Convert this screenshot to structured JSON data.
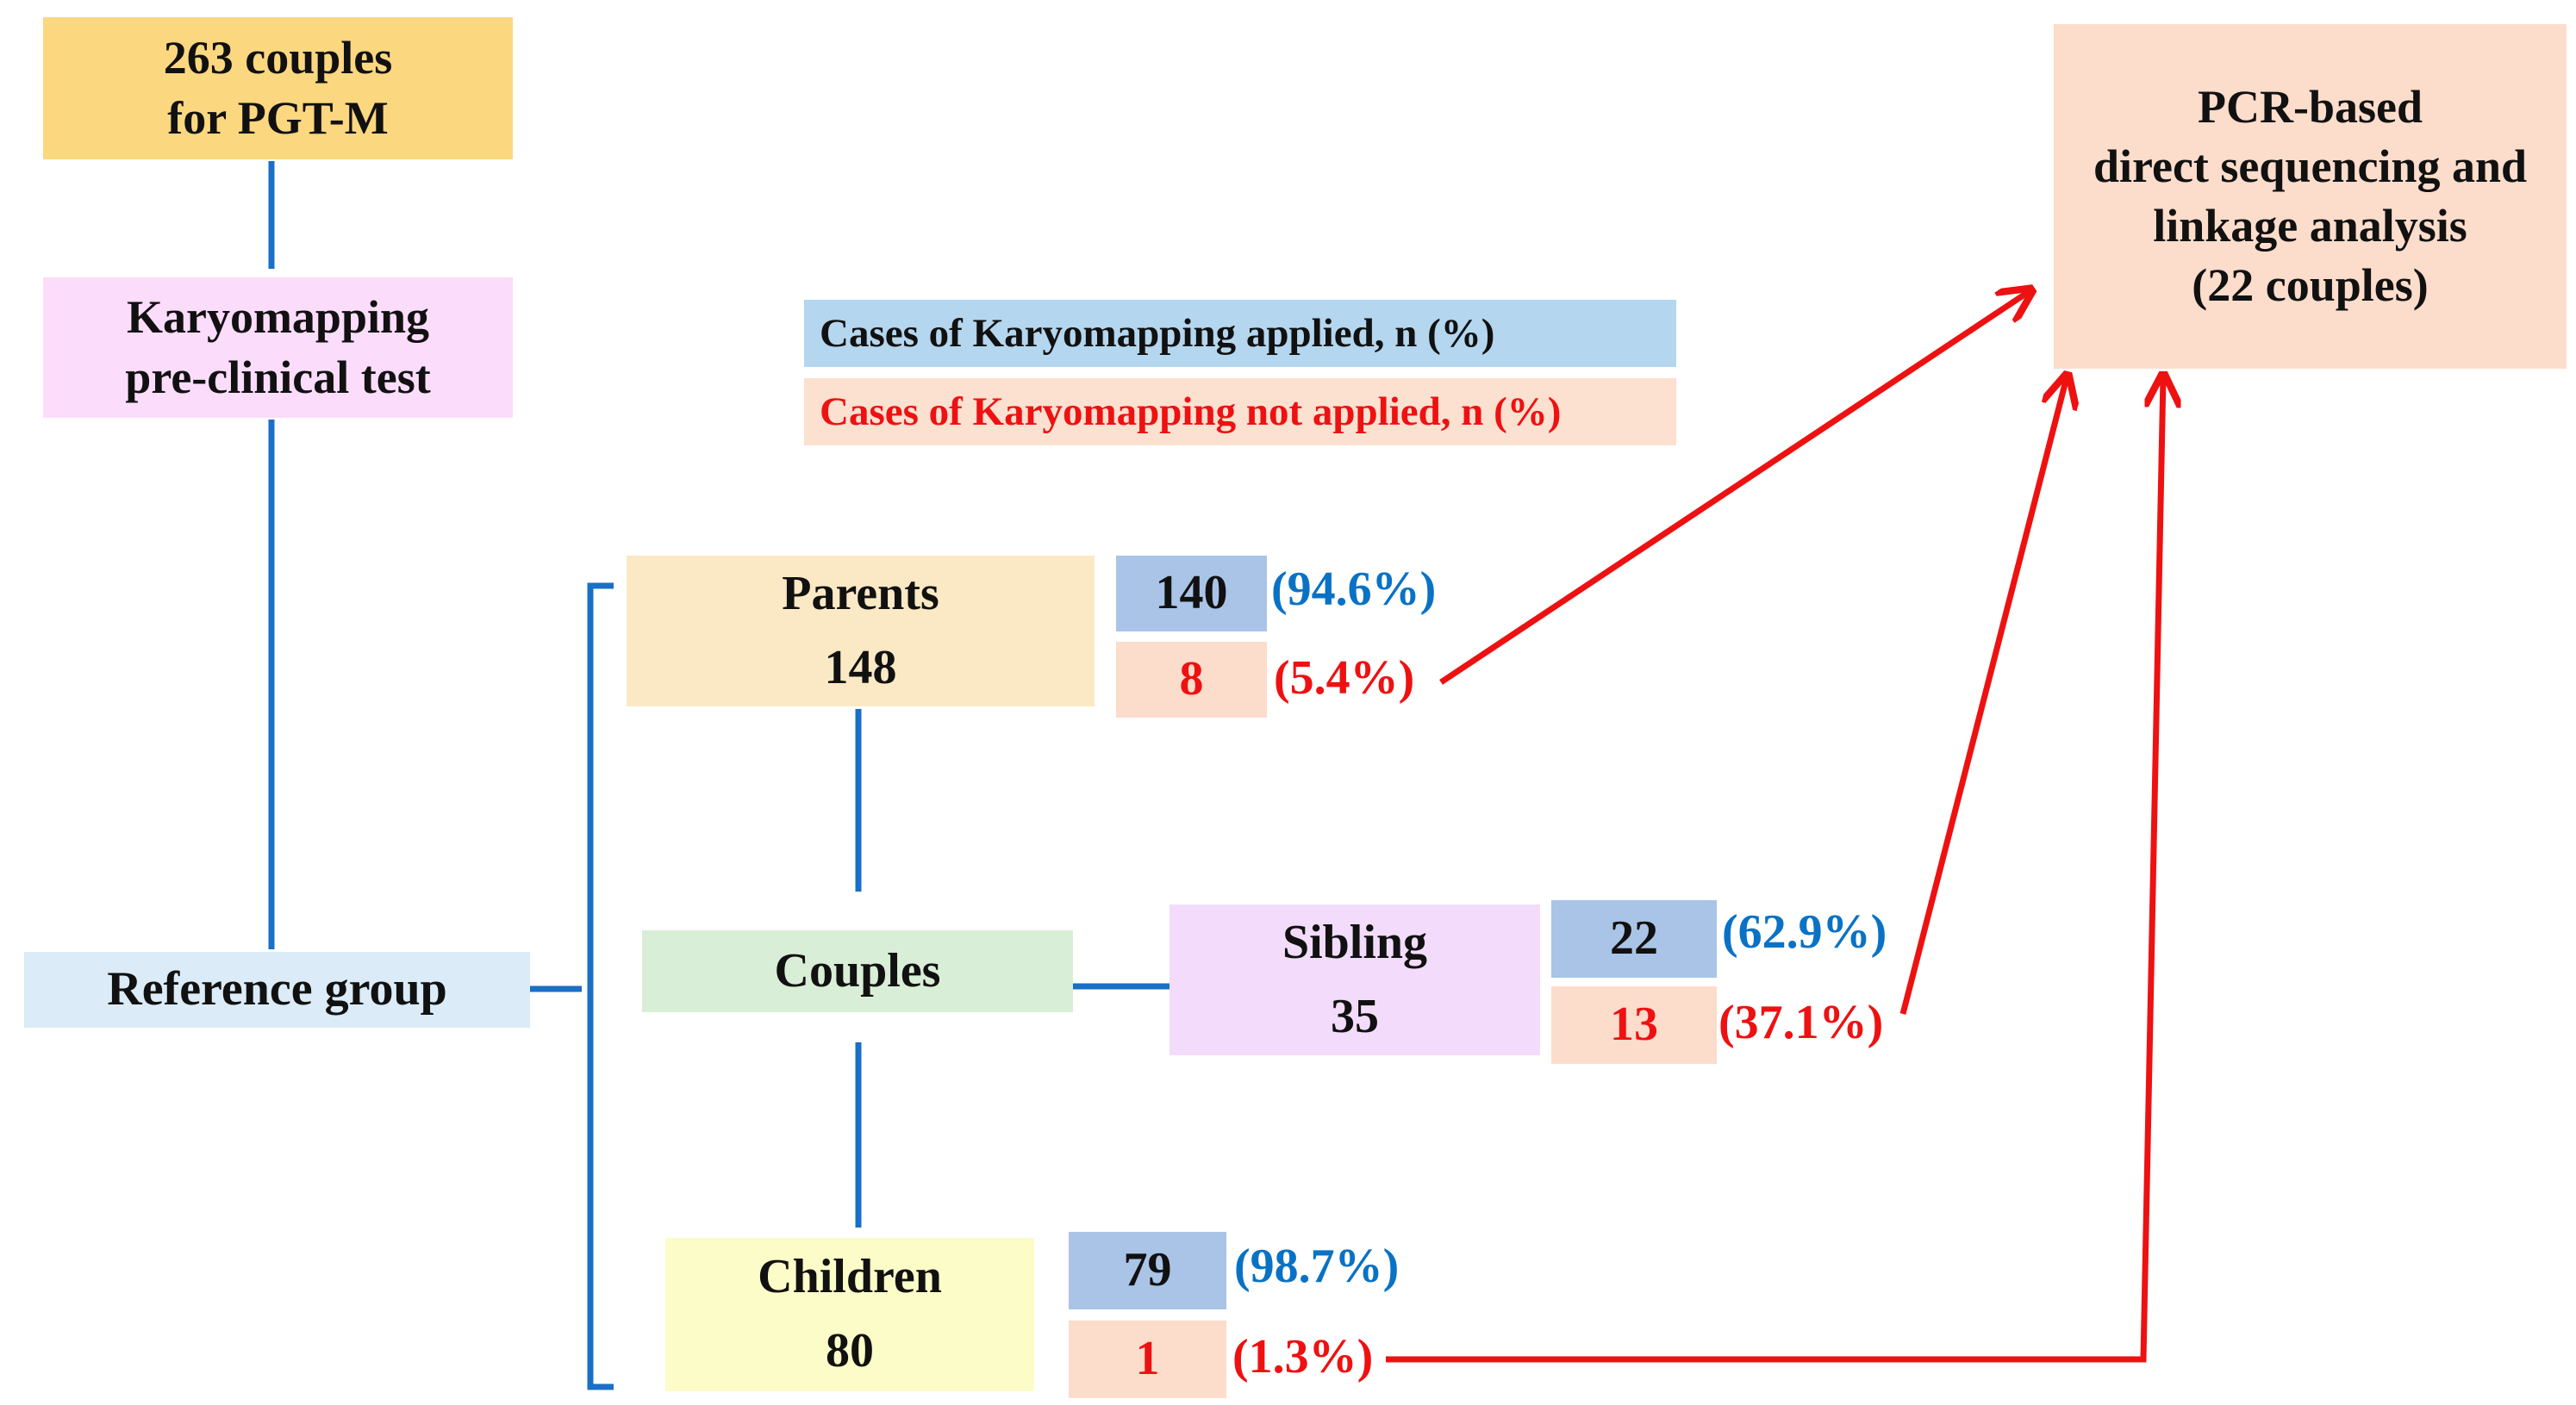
{
  "start": {
    "line1": "263 couples",
    "line2": "for PGT-M"
  },
  "preclinical": {
    "line1": "Karyomapping",
    "line2": "pre-clinical test"
  },
  "reference": {
    "label": "Reference group"
  },
  "legend": {
    "applied": "Cases of Karyomapping applied, n (%)",
    "not_applied": "Cases of Karyomapping not applied, n (%)"
  },
  "pcr": {
    "line1": "PCR-based",
    "line2": "direct sequencing and",
    "line3": "linkage analysis",
    "line4": "(22 couples)"
  },
  "parents": {
    "label": "Parents",
    "total": "148",
    "applied_n": "140",
    "applied_pct": "(94.6%)",
    "not_n": "8",
    "not_pct": "(5.4%)"
  },
  "couples": {
    "label": "Couples"
  },
  "sibling": {
    "label": "Sibling",
    "total": "35",
    "applied_n": "22",
    "applied_pct": "(62.9%)",
    "not_n": "13",
    "not_pct": "(37.1%)"
  },
  "children": {
    "label": "Children",
    "total": "80",
    "applied_n": "79",
    "applied_pct": "(98.7%)",
    "not_n": "1",
    "not_pct": "(1.3%)"
  },
  "colors": {
    "start_fill": "#fbd77f",
    "preclinical_fill": "#fbdcfb",
    "reference_fill": "#dbebf7",
    "legend_applied_fill": "#b4d6ef",
    "legend_not_fill": "#fce0d0",
    "pcr_fill": "#fcdccb",
    "parents_fill": "#fbe8c4",
    "couples_fill": "#d9eed6",
    "sibling_fill": "#f3dcfb",
    "children_fill": "#fcfcc9",
    "applied_cell_fill": "#a9c4e6",
    "not_cell_fill": "#fcdccb",
    "connector_blue": "#1a6fc6",
    "arrow_red": "#ee1111"
  }
}
